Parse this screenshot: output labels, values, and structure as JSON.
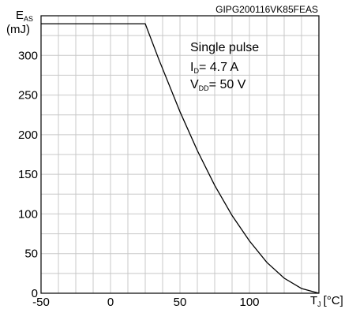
{
  "chart_data": {
    "type": "line",
    "reference": "GIPG200116VK85FEAS",
    "ylabel_main": "E",
    "ylabel_sub": "AS",
    "ylabel_unit": "(mJ)",
    "xlabel_main": "T",
    "xlabel_sub": "J",
    "xlabel_unit": "[°C]",
    "xlim": [
      -50,
      150
    ],
    "ylim": [
      0,
      350
    ],
    "xticks": [
      -50,
      0,
      50,
      100
    ],
    "yticks": [
      0,
      50,
      100,
      150,
      200,
      250,
      300
    ],
    "grid": true,
    "conditions": {
      "line1": "Single pulse",
      "line2_main": "I",
      "line2_sub": "D",
      "line2_rest": "= 4.7 A",
      "line3_main": "V",
      "line3_sub": "DD",
      "line3_rest": "= 50 V"
    },
    "series": [
      {
        "x": [
          -50,
          25,
          35,
          50,
          62.5,
          75,
          87.5,
          100,
          112.5,
          125,
          137.5,
          150
        ],
        "y": [
          340,
          340,
          294,
          229,
          180,
          136,
          98,
          66,
          39,
          19,
          6,
          0
        ]
      }
    ]
  }
}
